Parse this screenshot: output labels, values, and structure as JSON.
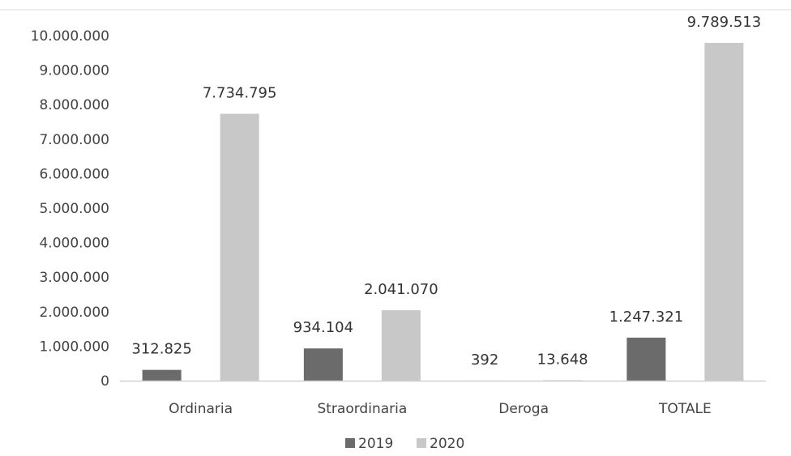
{
  "chart_data": {
    "type": "bar",
    "categories": [
      "Ordinaria",
      "Straordinaria",
      "Deroga",
      "TOTALE"
    ],
    "series": [
      {
        "name": "2019",
        "values": [
          312825,
          934104,
          392,
          1247321
        ],
        "labels": [
          "312.825",
          "934.104",
          "392",
          "1.247.321"
        ]
      },
      {
        "name": "2020",
        "values": [
          7734795,
          2041070,
          13648,
          9789513
        ],
        "labels": [
          "7.734.795",
          "2.041.070",
          "13.648",
          "9.789.513"
        ]
      }
    ],
    "y_ticks": [
      "0",
      "1.000.000",
      "2.000.000",
      "3.000.000",
      "4.000.000",
      "5.000.000",
      "6.000.000",
      "7.000.000",
      "8.000.000",
      "9.000.000",
      "10.000.000"
    ],
    "ylim": [
      0,
      10000000
    ],
    "grid": false,
    "legend_position": "bottom",
    "colors": {
      "2019": "#6b6b6b",
      "2020": "#c8c8c8",
      "axis": "#d0d0d0"
    }
  }
}
